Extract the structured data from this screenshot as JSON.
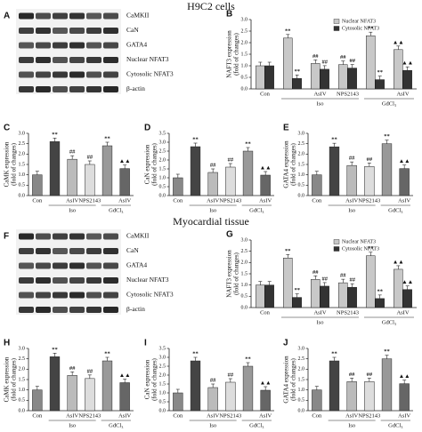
{
  "sections": [
    {
      "title": "H9C2 cells",
      "blot": {
        "panel": "A",
        "labels": [
          "CaMKII",
          "CaN",
          "GATA4",
          "Nuclear NFAT3",
          "Cytosolic NFAT3",
          "β-actin"
        ]
      }
    },
    {
      "title": "Myocardial tissue",
      "blot": {
        "panel": "F",
        "labels": [
          "CaMKII",
          "CaN",
          "GATA4",
          "Nuclear NFAT3",
          "Cytosolic NFAT3",
          "β-actin"
        ]
      }
    }
  ],
  "chart_data": [
    {
      "type": "bar",
      "panel": "B",
      "ylabel": [
        "NAFT3 expression",
        "(fold of changes)"
      ],
      "categories": [
        "Con",
        null,
        "AsIV",
        "NPS2143",
        null,
        "AsIV"
      ],
      "group_labels": [
        "Iso",
        "GdCl₃"
      ],
      "series": [
        {
          "name": "Nuclear NFAT3",
          "color": "#c8c8c8",
          "values": [
            1.0,
            2.2,
            1.1,
            1.05,
            2.3,
            1.7
          ],
          "annotations": [
            null,
            "**",
            "##",
            "##",
            "**",
            "▲▲"
          ]
        },
        {
          "name": "Cytosolic NFAT3",
          "color": "#333333",
          "values": [
            1.0,
            0.45,
            0.85,
            0.9,
            0.4,
            0.8
          ],
          "annotations": [
            null,
            "**",
            "##",
            "##",
            "**",
            "▲▲"
          ]
        }
      ],
      "ylim": [
        0,
        3
      ],
      "yticks": [
        {
          "value": 0,
          "label": "0.0"
        },
        {
          "value": 0.5,
          "label": "0.5"
        },
        {
          "value": 1,
          "label": "1.0"
        },
        {
          "value": 1.5,
          "label": "1.5"
        },
        {
          "value": 2,
          "label": "2.0"
        },
        {
          "value": 2.5,
          "label": "2.5"
        },
        {
          "value": 3,
          "label": "3.0"
        }
      ]
    },
    {
      "type": "bar",
      "panel": "C",
      "ylabel": [
        "CaMK expression",
        "(fold of changes)"
      ],
      "categories": [
        "Con",
        null,
        "AsIV",
        "NPS2143",
        null,
        "AsIV"
      ],
      "group_labels": [
        "Iso",
        "GdCl₃"
      ],
      "values": [
        1.0,
        2.6,
        1.75,
        1.5,
        2.4,
        1.3
      ],
      "annotations": [
        null,
        "**",
        "##",
        "##",
        "**",
        "▲▲"
      ],
      "colors": [
        "#888888",
        "#444444",
        "#bbbbbb",
        "#dddddd",
        "#999999",
        "#666666"
      ],
      "ylim": [
        0,
        3
      ],
      "yticks": [
        {
          "value": 0,
          "label": "0.0"
        },
        {
          "value": 0.5,
          "label": "0.5"
        },
        {
          "value": 1,
          "label": "1.0"
        },
        {
          "value": 1.5,
          "label": "1.5"
        },
        {
          "value": 2,
          "label": "2.0"
        },
        {
          "value": 2.5,
          "label": "2.5"
        },
        {
          "value": 3,
          "label": "3.0"
        }
      ]
    },
    {
      "type": "bar",
      "panel": "D",
      "ylabel": [
        "CaN expression",
        "(fold of changes)"
      ],
      "categories": [
        "Con",
        null,
        "AsIV",
        "NPS2143",
        null,
        "AsIV"
      ],
      "group_labels": [
        "Iso",
        "GdCl₃"
      ],
      "values": [
        1.0,
        2.75,
        1.3,
        1.6,
        2.5,
        1.15
      ],
      "annotations": [
        null,
        "**",
        "##",
        "##",
        "**",
        "▲▲"
      ],
      "colors": [
        "#888888",
        "#444444",
        "#bbbbbb",
        "#dddddd",
        "#999999",
        "#666666"
      ],
      "ylim": [
        0,
        3.5
      ],
      "yticks": [
        {
          "value": 0,
          "label": "0.0"
        },
        {
          "value": 0.5,
          "label": "0.5"
        },
        {
          "value": 1,
          "label": "1.0"
        },
        {
          "value": 1.5,
          "label": "1.5"
        },
        {
          "value": 2,
          "label": "2.0"
        },
        {
          "value": 2.5,
          "label": "2.5"
        },
        {
          "value": 3,
          "label": "3.0"
        },
        {
          "value": 3.5,
          "label": "3.5"
        }
      ]
    },
    {
      "type": "bar",
      "panel": "E",
      "ylabel": [
        "GATA4 expression",
        "(fold of changes)"
      ],
      "categories": [
        "Con",
        null,
        "AsIV",
        "NPS2143",
        null,
        "AsIV"
      ],
      "group_labels": [
        "Iso",
        "GdCl₃"
      ],
      "values": [
        1.0,
        2.35,
        1.45,
        1.4,
        2.5,
        1.3
      ],
      "annotations": [
        null,
        "**",
        "##",
        "##",
        "**",
        "▲▲"
      ],
      "colors": [
        "#888888",
        "#444444",
        "#bbbbbb",
        "#dddddd",
        "#999999",
        "#666666"
      ],
      "ylim": [
        0,
        3
      ],
      "yticks": [
        {
          "value": 0,
          "label": "0.0"
        },
        {
          "value": 0.5,
          "label": "0.5"
        },
        {
          "value": 1,
          "label": "1.0"
        },
        {
          "value": 1.5,
          "label": "1.5"
        },
        {
          "value": 2,
          "label": "2.0"
        },
        {
          "value": 2.5,
          "label": "2.5"
        },
        {
          "value": 3,
          "label": "3.0"
        }
      ]
    },
    {
      "type": "bar",
      "panel": "G",
      "ylabel": [
        "NAFT3 expression",
        "(fold of changes)"
      ],
      "categories": [
        "Con",
        null,
        "AsIV",
        "NPS2143",
        null,
        "AsIV"
      ],
      "group_labels": [
        "Iso",
        "GdCl₃"
      ],
      "series": [
        {
          "name": "Nuclear NFAT3",
          "color": "#c8c8c8",
          "values": [
            1.0,
            2.2,
            1.25,
            1.1,
            2.3,
            1.7
          ],
          "annotations": [
            null,
            "**",
            "##",
            "##",
            "**",
            "▲▲"
          ]
        },
        {
          "name": "Cytosolic NFAT3",
          "color": "#333333",
          "values": [
            1.0,
            0.45,
            0.95,
            0.9,
            0.4,
            0.8
          ],
          "annotations": [
            null,
            "**",
            "##",
            "##",
            "**",
            "▲▲"
          ]
        }
      ],
      "ylim": [
        0,
        3
      ],
      "yticks": [
        {
          "value": 0,
          "label": "0.0"
        },
        {
          "value": 0.5,
          "label": "0.5"
        },
        {
          "value": 1,
          "label": "1.0"
        },
        {
          "value": 1.5,
          "label": "1.5"
        },
        {
          "value": 2,
          "label": "2.0"
        },
        {
          "value": 2.5,
          "label": "2.5"
        },
        {
          "value": 3,
          "label": "3.0"
        }
      ]
    },
    {
      "type": "bar",
      "panel": "H",
      "ylabel": [
        "CaMK expression",
        "(fold of changes)"
      ],
      "categories": [
        "Con",
        null,
        "AsIV",
        "NPS2143",
        null,
        "AsIV"
      ],
      "group_labels": [
        "Iso",
        "GdCl₃"
      ],
      "values": [
        1.0,
        2.6,
        1.7,
        1.55,
        2.4,
        1.35
      ],
      "annotations": [
        null,
        "**",
        "##",
        "##",
        "**",
        "▲▲"
      ],
      "colors": [
        "#888888",
        "#444444",
        "#bbbbbb",
        "#dddddd",
        "#999999",
        "#666666"
      ],
      "ylim": [
        0,
        3
      ],
      "yticks": [
        {
          "value": 0,
          "label": "0.0"
        },
        {
          "value": 0.5,
          "label": "0.5"
        },
        {
          "value": 1,
          "label": "1.0"
        },
        {
          "value": 1.5,
          "label": "1.5"
        },
        {
          "value": 2,
          "label": "2.0"
        },
        {
          "value": 2.5,
          "label": "2.5"
        },
        {
          "value": 3,
          "label": "3.0"
        }
      ]
    },
    {
      "type": "bar",
      "panel": "I",
      "ylabel": [
        "CaN expression",
        "(fold of changes)"
      ],
      "categories": [
        "Con",
        null,
        "AsIV",
        "NPS2143",
        null,
        "AsIV"
      ],
      "group_labels": [
        "Iso",
        "GdCl₃"
      ],
      "values": [
        1.0,
        2.8,
        1.3,
        1.6,
        2.5,
        1.15
      ],
      "annotations": [
        null,
        "**",
        "##",
        "##",
        "**",
        "▲▲"
      ],
      "colors": [
        "#888888",
        "#444444",
        "#bbbbbb",
        "#dddddd",
        "#999999",
        "#666666"
      ],
      "ylim": [
        0,
        3.5
      ],
      "yticks": [
        {
          "value": 0,
          "label": "0.0"
        },
        {
          "value": 0.5,
          "label": "0.5"
        },
        {
          "value": 1,
          "label": "1.0"
        },
        {
          "value": 1.5,
          "label": "1.5"
        },
        {
          "value": 2,
          "label": "2.0"
        },
        {
          "value": 2.5,
          "label": "2.5"
        },
        {
          "value": 3,
          "label": "3.0"
        },
        {
          "value": 3.5,
          "label": "3.5"
        }
      ]
    },
    {
      "type": "bar",
      "panel": "J",
      "ylabel": [
        "GATA4 expression",
        "(fold of changes)"
      ],
      "categories": [
        "Con",
        null,
        "AsIV",
        "NPS2143",
        null,
        "AsIV"
      ],
      "group_labels": [
        "Iso",
        "GdCl₃"
      ],
      "values": [
        1.0,
        2.4,
        1.4,
        1.4,
        2.5,
        1.3
      ],
      "annotations": [
        null,
        "**",
        "##",
        "##",
        "**",
        "▲▲"
      ],
      "colors": [
        "#888888",
        "#444444",
        "#bbbbbb",
        "#dddddd",
        "#999999",
        "#666666"
      ],
      "ylim": [
        0,
        3
      ],
      "yticks": [
        {
          "value": 0,
          "label": "0.0"
        },
        {
          "value": 0.5,
          "label": "0.5"
        },
        {
          "value": 1,
          "label": "1.0"
        },
        {
          "value": 1.5,
          "label": "1.5"
        },
        {
          "value": 2,
          "label": "2.0"
        },
        {
          "value": 2.5,
          "label": "2.5"
        },
        {
          "value": 3,
          "label": "3.0"
        }
      ]
    }
  ]
}
